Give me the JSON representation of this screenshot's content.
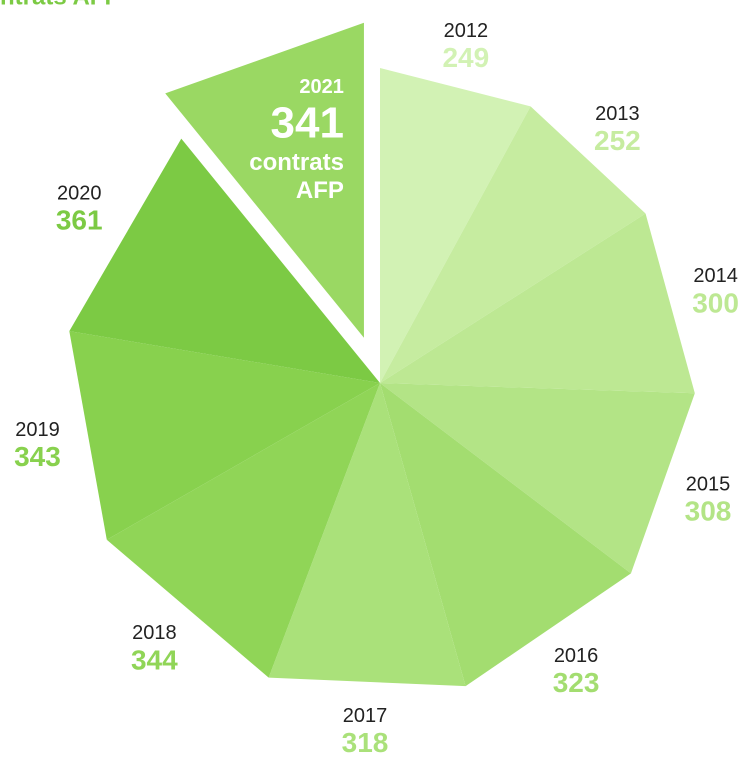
{
  "chart_data": {
    "type": "pie",
    "title": "contrats AFP",
    "categories": [
      "2012",
      "2013",
      "2014",
      "2015",
      "2016",
      "2017",
      "2018",
      "2019",
      "2020",
      "2021"
    ],
    "values": [
      249,
      252,
      300,
      308,
      323,
      318,
      344,
      343,
      361,
      341
    ],
    "colors": [
      "#d2f2b4",
      "#c6eca0",
      "#bde893",
      "#b3e486",
      "#a3dd70",
      "#aae17a",
      "#90d557",
      "#88d14e",
      "#7cca44",
      "#9ad863"
    ],
    "explode": [
      false,
      false,
      false,
      false,
      false,
      false,
      false,
      false,
      false,
      true
    ],
    "annotation": [
      "contrats",
      "AFP"
    ]
  }
}
